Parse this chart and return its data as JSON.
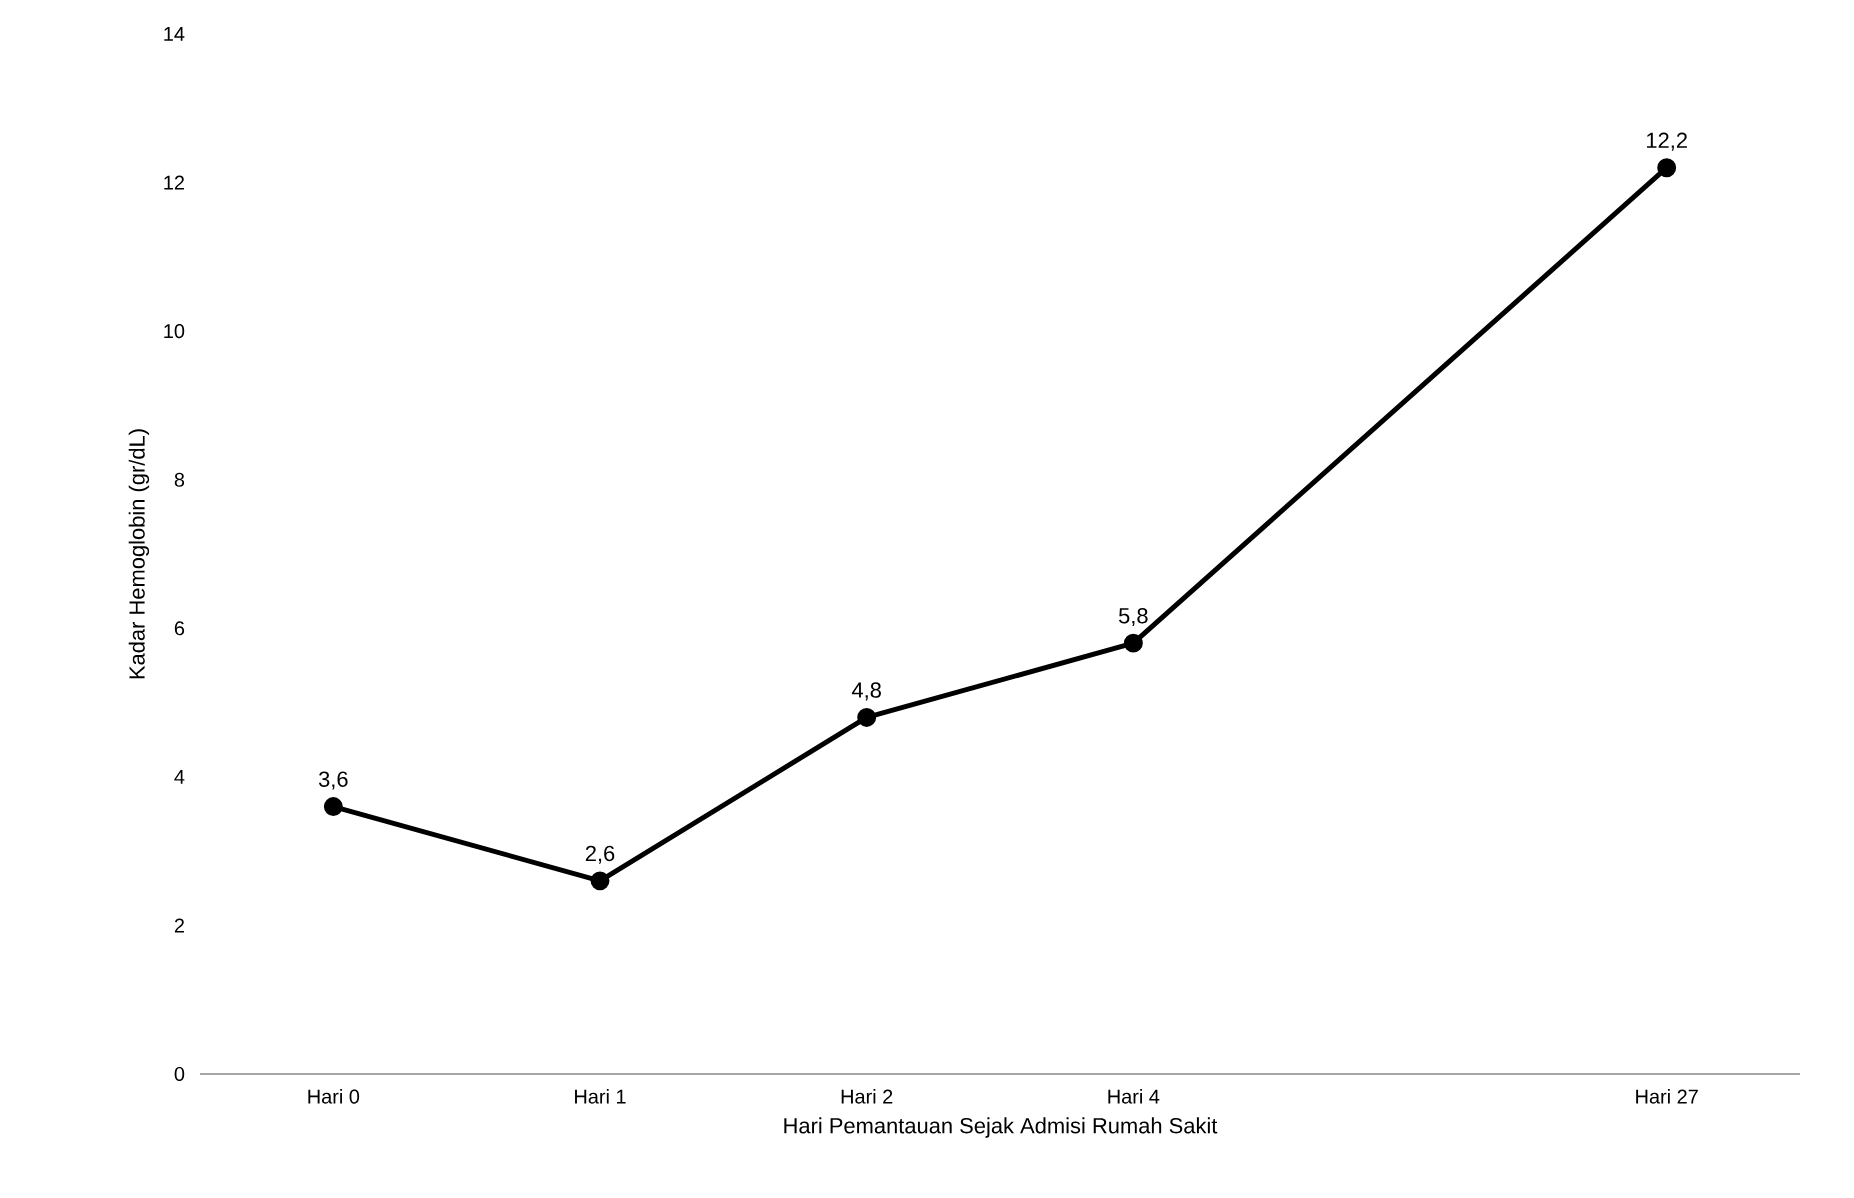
{
  "chart_data": {
    "type": "line",
    "xlabel": "Hari Pemantauan Sejak Admisi Rumah Sakit",
    "ylabel": "Kadar Hemoglobin (gr/dL)",
    "categories": [
      "Hari 0",
      "Hari 1",
      "Hari 2",
      "Hari 4",
      null,
      "Hari 27"
    ],
    "series": [
      {
        "color": "#000000",
        "values": [
          3.6,
          2.6,
          4.8,
          5.8,
          null,
          12.2
        ],
        "value_labels": [
          "3,6",
          "2,6",
          "4,8",
          "5,8",
          null,
          "12,2"
        ]
      }
    ],
    "ylim": [
      0,
      14
    ],
    "yticks": [
      0,
      2,
      4,
      6,
      8,
      10,
      12,
      14
    ],
    "marker": "circle",
    "line_style": "solid"
  }
}
